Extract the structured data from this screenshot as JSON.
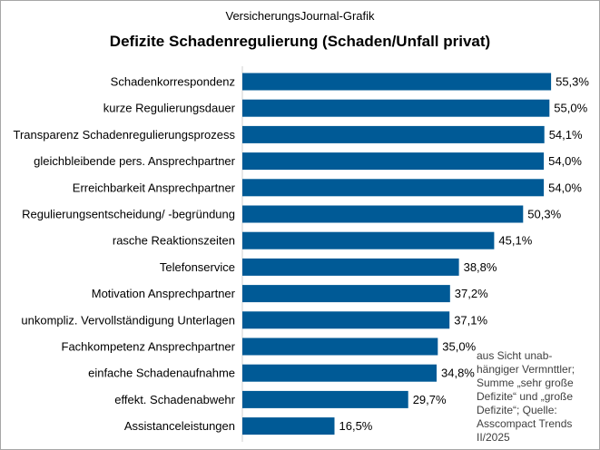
{
  "header": {
    "supertitle": "VersicherungsJournal-Grafik"
  },
  "chart_data": {
    "type": "bar",
    "orientation": "horizontal",
    "title": "Defizite Schadenregulierung (Schaden/Unfall privat)",
    "categories": [
      "Schadenkorrespondenz",
      "kurze Regulierungsdauer",
      "Transparenz Schadenregulierungsprozess",
      "gleichbleibende pers. Ansprechpartner",
      "Erreichbarkeit Ansprechpartner",
      "Regulierungsentscheidung/ -begründung",
      "rasche Reaktionszeiten",
      "Telefonservice",
      "Motivation Ansprechpartner",
      "unkompliz. Vervollständigung Unterlagen",
      "Fachkompetenz Ansprechpartner",
      "einfache Schadenaufnahme",
      "effekt. Schadenabwehr",
      "Assistanceleistungen"
    ],
    "values": [
      55.3,
      55.0,
      54.1,
      54.0,
      54.0,
      50.3,
      45.1,
      38.8,
      37.2,
      37.1,
      35.0,
      34.8,
      29.7,
      16.5
    ],
    "value_labels": [
      "55,3%",
      "55,0%",
      "54,1%",
      "54,0%",
      "54,0%",
      "50,3%",
      "45,1%",
      "38,8%",
      "37,2%",
      "37,1%",
      "35,0%",
      "34,8%",
      "29,7%",
      "16,5%"
    ],
    "unit": "%",
    "xlim": [
      0,
      100
    ],
    "grid": false,
    "legend": "none",
    "bar_color": "#005a96"
  },
  "note": "aus Sicht unab-\nhängiger Vermnttler;\nSumme „sehr große\nDefizite“ und „große\nDefizite“; Quelle:\nAsscompact Trends\nII/2025"
}
